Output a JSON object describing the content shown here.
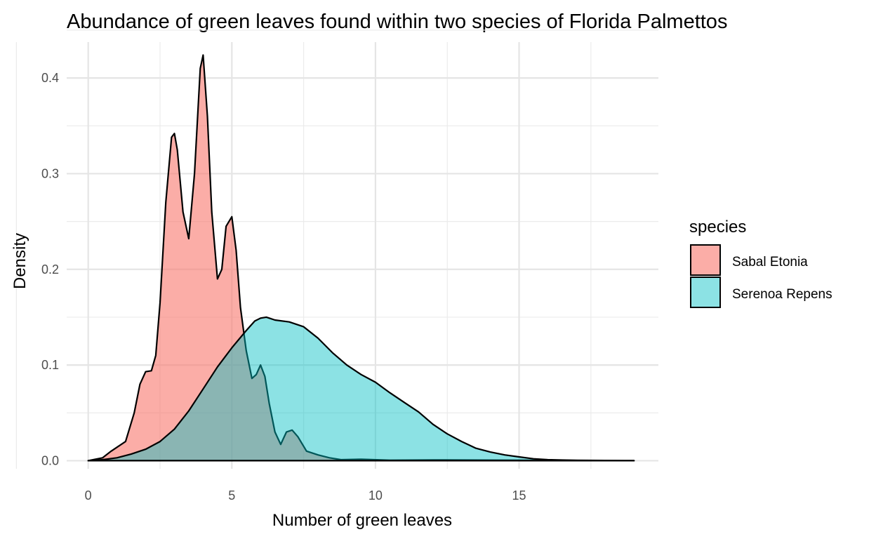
{
  "chart_data": {
    "type": "area",
    "title": "Abundance of green leaves found within two species of Florida Palmettos",
    "xlabel": "Number of green leaves",
    "ylabel": "Density",
    "xlim": [
      -0.75,
      19.85
    ],
    "ylim": [
      -0.0085,
      0.4375
    ],
    "x_ticks": [
      0,
      5,
      10,
      15
    ],
    "x_tick_labels": [
      "0",
      "5",
      "10",
      "15"
    ],
    "y_ticks": [
      0.0,
      0.1,
      0.2,
      0.3,
      0.4
    ],
    "y_tick_labels": [
      "0.0",
      "0.1",
      "0.2",
      "0.3",
      "0.4"
    ],
    "grid": true,
    "legend": {
      "title": "species",
      "position": "right"
    },
    "series": [
      {
        "name": "Sabal Etonia",
        "color": "#F8766D",
        "x": [
          0,
          0.5,
          0.8,
          1.0,
          1.3,
          1.6,
          1.8,
          2.0,
          2.2,
          2.35,
          2.5,
          2.7,
          2.9,
          3.0,
          3.1,
          3.3,
          3.5,
          3.7,
          3.9,
          4.0,
          4.15,
          4.3,
          4.5,
          4.65,
          4.8,
          5.0,
          5.15,
          5.3,
          5.5,
          5.7,
          5.85,
          6.0,
          6.15,
          6.3,
          6.5,
          6.7,
          6.9,
          7.1,
          7.3,
          7.6,
          8.0,
          8.4,
          8.8,
          9.5,
          10.5,
          12.0,
          19.0
        ],
        "values": [
          0.0,
          0.003,
          0.01,
          0.014,
          0.02,
          0.05,
          0.08,
          0.093,
          0.094,
          0.11,
          0.165,
          0.27,
          0.338,
          0.342,
          0.325,
          0.26,
          0.232,
          0.3,
          0.41,
          0.424,
          0.36,
          0.26,
          0.19,
          0.2,
          0.245,
          0.255,
          0.22,
          0.16,
          0.115,
          0.086,
          0.09,
          0.1,
          0.088,
          0.06,
          0.03,
          0.017,
          0.03,
          0.032,
          0.025,
          0.01,
          0.006,
          0.003,
          0.001,
          0.0015,
          0.0005,
          0.0008,
          0.0
        ]
      },
      {
        "name": "Serenoa Repens",
        "color": "#00BFC4",
        "x": [
          0,
          0.5,
          1.0,
          1.5,
          2.0,
          2.5,
          3.0,
          3.5,
          4.0,
          4.5,
          5.0,
          5.5,
          5.8,
          6.0,
          6.2,
          6.5,
          7.0,
          7.5,
          8.0,
          8.5,
          9.0,
          9.5,
          10.0,
          10.5,
          11.0,
          11.5,
          12.0,
          12.5,
          13.0,
          13.5,
          14.0,
          14.5,
          15.0,
          15.5,
          16.0,
          16.5,
          17.0,
          18.0,
          19.0
        ],
        "values": [
          0.0,
          0.001,
          0.003,
          0.007,
          0.012,
          0.02,
          0.033,
          0.052,
          0.075,
          0.098,
          0.118,
          0.136,
          0.146,
          0.149,
          0.15,
          0.147,
          0.145,
          0.14,
          0.128,
          0.113,
          0.1,
          0.09,
          0.082,
          0.071,
          0.061,
          0.051,
          0.038,
          0.028,
          0.02,
          0.013,
          0.009,
          0.006,
          0.004,
          0.002,
          0.001,
          0.0007,
          0.0004,
          0.0002,
          0.0
        ]
      }
    ]
  }
}
